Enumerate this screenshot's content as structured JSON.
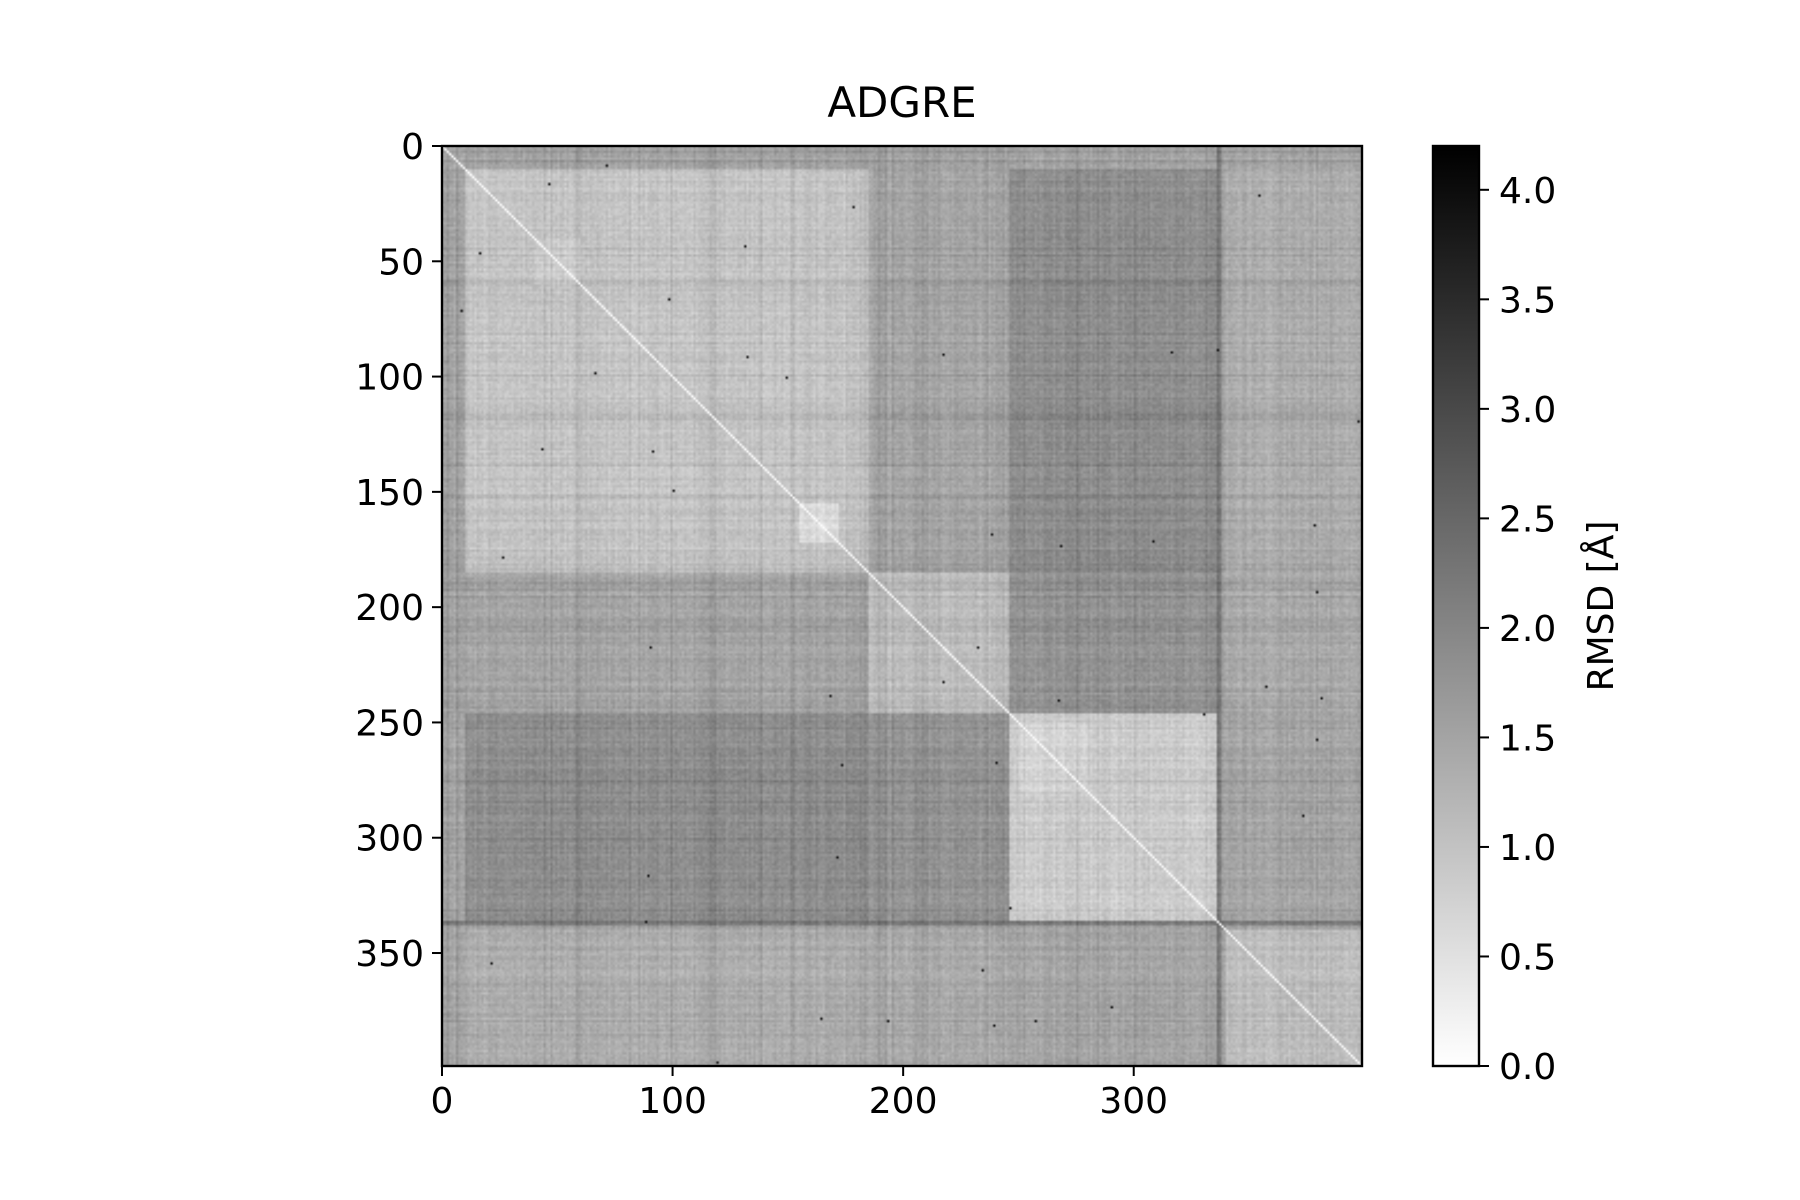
{
  "chart_data": {
    "type": "heatmap",
    "title": "ADGRE",
    "xlabel": "",
    "ylabel": "",
    "matrix_size": 399,
    "xlim": [
      0,
      399
    ],
    "ylim": [
      399,
      0
    ],
    "x_ticks": [
      0,
      100,
      200,
      300
    ],
    "y_ticks": [
      0,
      50,
      100,
      150,
      200,
      250,
      300,
      350
    ],
    "colormap": "gray_r",
    "colorbar": {
      "label": "RMSD [Å]",
      "range": [
        0.0,
        4.2
      ],
      "ticks": [
        0.0,
        0.5,
        1.0,
        1.5,
        2.0,
        2.5,
        3.0,
        3.5,
        4.0
      ],
      "tick_labels": [
        "0.0",
        "0.5",
        "1.0",
        "1.5",
        "2.0",
        "2.5",
        "3.0",
        "3.5",
        "4.0"
      ]
    },
    "diagonal_value": 0.0,
    "blocks": [
      {
        "range": [
          0,
          10
        ],
        "mean_rmsd": 1.4
      },
      {
        "range": [
          10,
          185
        ],
        "mean_rmsd": 0.95
      },
      {
        "range": [
          185,
          246
        ],
        "mean_rmsd": 1.05
      },
      {
        "range": [
          246,
          336
        ],
        "mean_rmsd": 0.85
      },
      {
        "range": [
          336,
          340
        ],
        "mean_rmsd": 2.1
      },
      {
        "range": [
          340,
          399
        ],
        "mean_rmsd": 1.1
      }
    ],
    "off_block_rmsd": [
      {
        "rows": [
          10,
          185
        ],
        "cols": [
          185,
          246
        ],
        "mean_rmsd": 1.45
      },
      {
        "rows": [
          10,
          185
        ],
        "cols": [
          246,
          336
        ],
        "mean_rmsd": 1.85
      },
      {
        "rows": [
          10,
          185
        ],
        "cols": [
          340,
          399
        ],
        "mean_rmsd": 1.35
      },
      {
        "rows": [
          185,
          246
        ],
        "cols": [
          246,
          336
        ],
        "mean_rmsd": 1.75
      },
      {
        "rows": [
          185,
          246
        ],
        "cols": [
          340,
          399
        ],
        "mean_rmsd": 1.4
      },
      {
        "rows": [
          246,
          336
        ],
        "cols": [
          340,
          399
        ],
        "mean_rmsd": 1.5
      }
    ],
    "sub_blocks": [
      {
        "range": [
          155,
          172
        ],
        "mean_rmsd": 0.5
      },
      {
        "range": [
          40,
          60
        ],
        "mean_rmsd": 0.8
      },
      {
        "range": [
          250,
          280
        ],
        "mean_rmsd": 0.7
      }
    ],
    "outlier_rows": [
      {
        "index": 336,
        "mean_rmsd": 2.3
      },
      {
        "index": 337,
        "mean_rmsd": 2.1
      }
    ]
  }
}
